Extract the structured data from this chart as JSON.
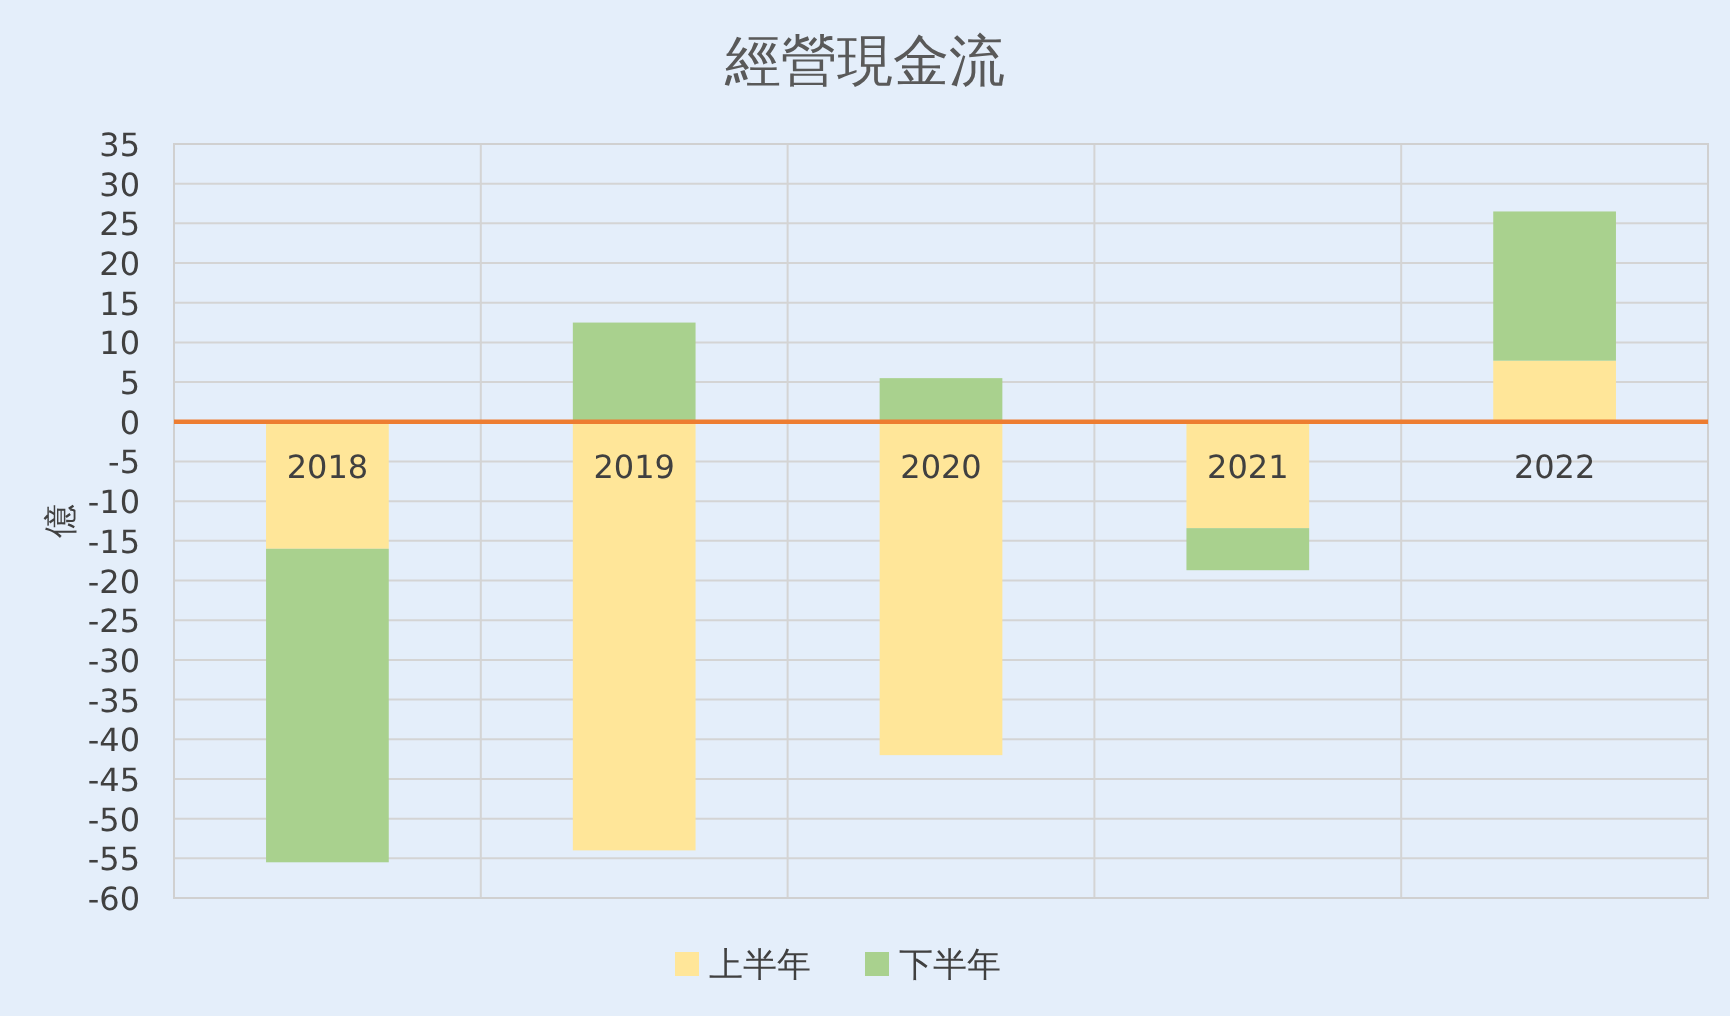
{
  "chart_data": {
    "type": "bar",
    "title": "經營現金流",
    "ylabel": "億",
    "categories": [
      "2018",
      "2019",
      "2020",
      "2021",
      "2022"
    ],
    "series": [
      {
        "name": "上半年",
        "color": "#ffe699",
        "values": [
          -16,
          -54,
          -42,
          -13.4,
          7.7
        ]
      },
      {
        "name": "下半年",
        "color": "#a9d18e",
        "values": [
          -39.5,
          12.5,
          5.5,
          -5.3,
          18.8
        ]
      }
    ],
    "stacked": true,
    "ylim": [
      -60,
      35
    ],
    "yticks": [
      -60,
      -55,
      -50,
      -45,
      -40,
      -35,
      -30,
      -25,
      -20,
      -15,
      -10,
      -5,
      0,
      5,
      10,
      15,
      20,
      25,
      30,
      35
    ],
    "grid": true,
    "legend": "bottom"
  }
}
